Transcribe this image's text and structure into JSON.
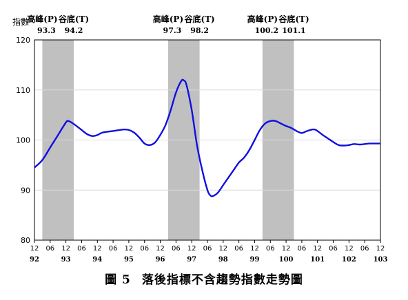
{
  "chart_data": {
    "type": "line",
    "ylabel": "指數",
    "ylim": [
      80,
      120
    ],
    "yticks": [
      80,
      90,
      100,
      110,
      120
    ],
    "x_month_labels": [
      "12",
      "06",
      "12",
      "06",
      "12",
      "06",
      "12",
      "06",
      "12",
      "06",
      "12",
      "06",
      "12",
      "06",
      "12",
      "06",
      "12",
      "06",
      "12",
      "06",
      "12",
      "06",
      "12"
    ],
    "x_year_labels": [
      {
        "label": "92",
        "t": 0
      },
      {
        "label": "93",
        "t": 12
      },
      {
        "label": "94",
        "t": 24
      },
      {
        "label": "95",
        "t": 36
      },
      {
        "label": "96",
        "t": 48
      },
      {
        "label": "97",
        "t": 60
      },
      {
        "label": "98",
        "t": 72
      },
      {
        "label": "99",
        "t": 84
      },
      {
        "label": "100",
        "t": 96
      },
      {
        "label": "101",
        "t": 108
      },
      {
        "label": "102",
        "t": 120
      },
      {
        "label": "103",
        "t": 132
      }
    ],
    "x_range": [
      0,
      132
    ],
    "recessions": [
      {
        "start": 3,
        "end": 15,
        "peak_label": "高峰(P)",
        "peak_value": "93.3",
        "trough_label": "谷底(T)",
        "trough_value": "94.2"
      },
      {
        "start": 51,
        "end": 63,
        "peak_label": "高峰(P)",
        "peak_value": "97.3",
        "trough_label": "谷底(T)",
        "trough_value": "98.2"
      },
      {
        "start": 87,
        "end": 99,
        "peak_label": "高峰(P)",
        "peak_value": "100.2",
        "trough_label": "谷底(T)",
        "trough_value": "101.1"
      }
    ],
    "series": [
      {
        "color": "#1010e0",
        "points": [
          [
            0,
            94.5
          ],
          [
            3,
            96
          ],
          [
            6,
            98.5
          ],
          [
            9,
            101
          ],
          [
            12,
            103.5
          ],
          [
            13,
            103.8
          ],
          [
            15,
            103.2
          ],
          [
            18,
            102
          ],
          [
            20,
            101.2
          ],
          [
            22,
            100.8
          ],
          [
            24,
            101
          ],
          [
            26,
            101.5
          ],
          [
            30,
            101.8
          ],
          [
            34,
            102.1
          ],
          [
            36,
            102
          ],
          [
            38,
            101.5
          ],
          [
            40,
            100.5
          ],
          [
            42,
            99.3
          ],
          [
            44,
            99
          ],
          [
            46,
            99.5
          ],
          [
            48,
            101
          ],
          [
            50,
            103
          ],
          [
            52,
            106
          ],
          [
            54,
            109.5
          ],
          [
            56,
            111.8
          ],
          [
            57,
            111.9
          ],
          [
            58,
            111
          ],
          [
            60,
            106
          ],
          [
            62,
            99
          ],
          [
            64,
            94
          ],
          [
            66,
            90
          ],
          [
            67,
            89
          ],
          [
            68,
            88.8
          ],
          [
            70,
            89.5
          ],
          [
            72,
            91
          ],
          [
            74,
            92.5
          ],
          [
            76,
            94
          ],
          [
            78,
            95.5
          ],
          [
            80,
            96.5
          ],
          [
            82,
            98
          ],
          [
            84,
            100
          ],
          [
            86,
            102
          ],
          [
            88,
            103.3
          ],
          [
            90,
            103.8
          ],
          [
            92,
            103.8
          ],
          [
            94,
            103.3
          ],
          [
            96,
            102.8
          ],
          [
            98,
            102.4
          ],
          [
            100,
            101.8
          ],
          [
            102,
            101.4
          ],
          [
            104,
            101.8
          ],
          [
            106,
            102.1
          ],
          [
            107,
            102.1
          ],
          [
            108,
            101.8
          ],
          [
            110,
            101
          ],
          [
            112,
            100.3
          ],
          [
            114,
            99.6
          ],
          [
            116,
            99
          ],
          [
            118,
            98.9
          ],
          [
            120,
            99
          ],
          [
            122,
            99.2
          ],
          [
            124,
            99.1
          ],
          [
            126,
            99.2
          ],
          [
            128,
            99.3
          ],
          [
            132,
            99.3
          ]
        ]
      }
    ]
  },
  "caption": {
    "number": "圖 5",
    "text": "落後指標不含趨勢指數走勢圖"
  }
}
